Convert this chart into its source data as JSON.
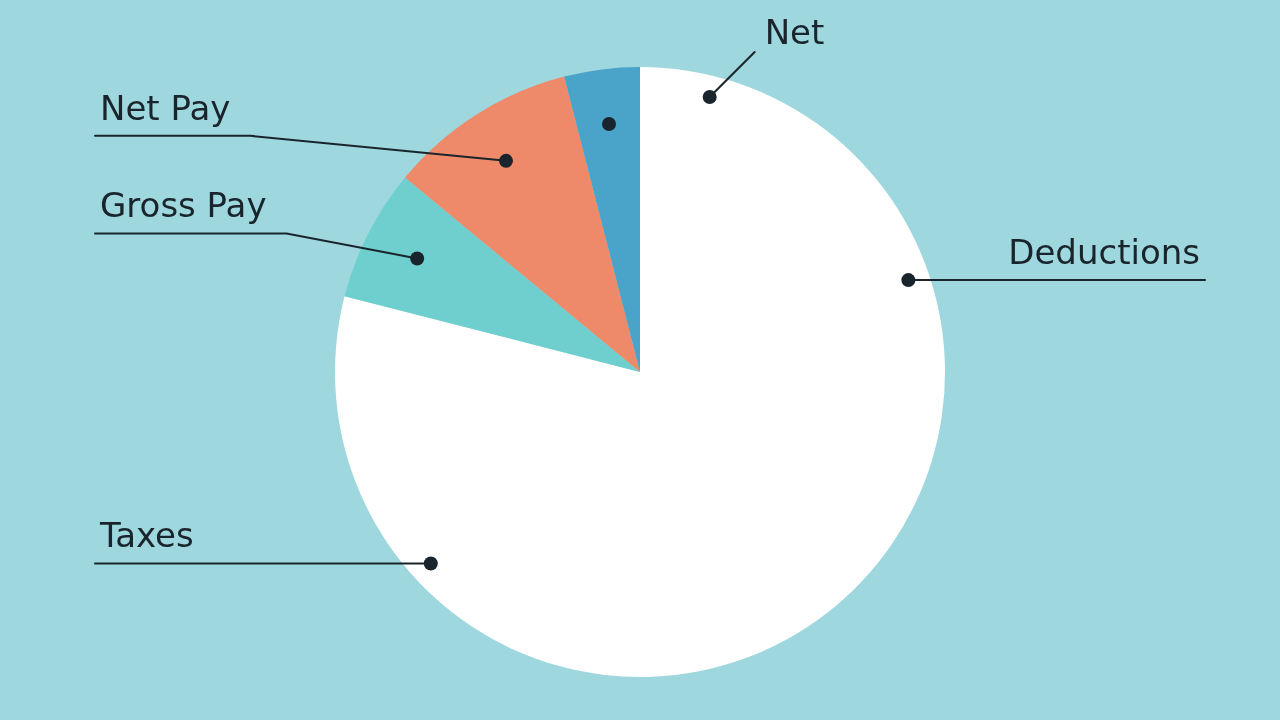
{
  "chart_data": {
    "type": "pie",
    "categories": [
      null,
      "Gross Pay",
      "Net Pay",
      null
    ],
    "values": [
      79,
      7,
      10,
      4
    ],
    "colors": [
      "#ffffff",
      "#6fcfcf",
      "#ee8a6a",
      "#4aa3c8"
    ],
    "annotations": [
      "Net",
      "Deductions",
      "Taxes"
    ],
    "legend": false
  }
}
